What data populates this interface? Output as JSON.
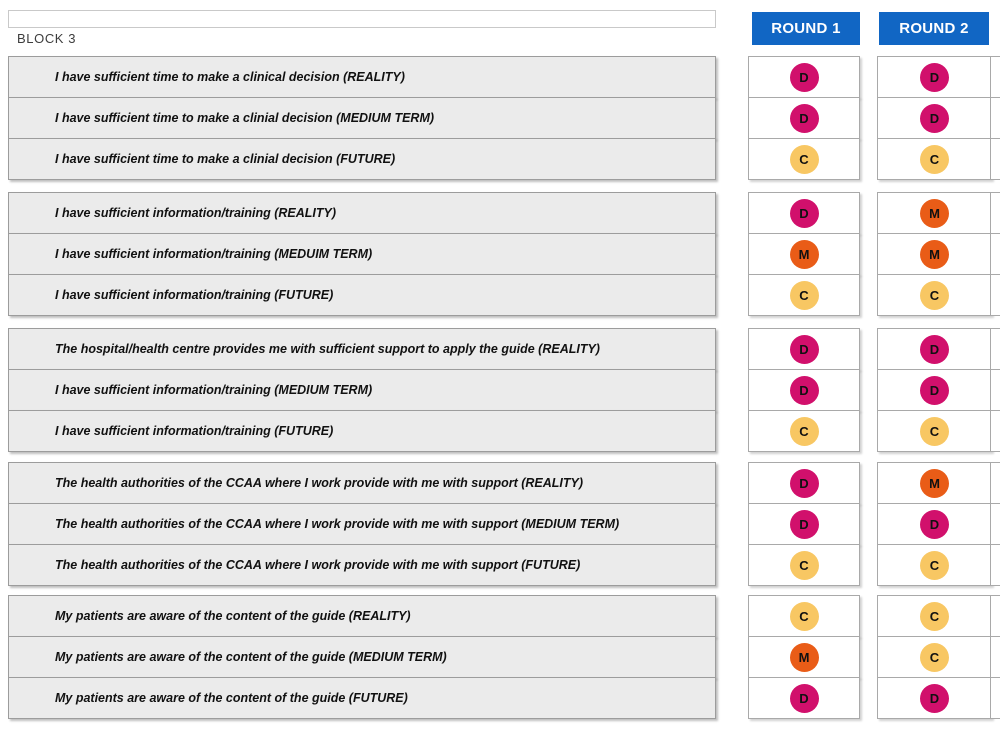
{
  "block_label": "BLOCK 3",
  "columns": [
    "ROUND 1",
    "ROUND 2"
  ],
  "code_colors": {
    "D": "#d1106c",
    "M": "#e95c17",
    "C": "#f8c763"
  },
  "header_color": "#1166c4",
  "chart_data": {
    "type": "table",
    "title": "BLOCK 3",
    "columns": [
      "ROUND 1",
      "ROUND 2"
    ],
    "code_colors": {
      "D": "#d1106c",
      "M": "#e95c17",
      "C": "#f8c763"
    },
    "rows": [
      {
        "item": "I have sufficient time to make a clinical decision (REALITY)",
        "round1": "D",
        "round2": "D"
      },
      {
        "item": "I have sufficient time to make a clinial decision (MEDIUM TERM)",
        "round1": "D",
        "round2": "D"
      },
      {
        "item": "I have sufficient time to make a clinial decision (FUTURE)",
        "round1": "C",
        "round2": "C"
      },
      {
        "item": "I have sufficient information/training (REALITY)",
        "round1": "D",
        "round2": "M"
      },
      {
        "item": "I have sufficient information/training (MEDUIM TERM)",
        "round1": "M",
        "round2": "M"
      },
      {
        "item": "I have sufficient information/training (FUTURE)",
        "round1": "C",
        "round2": "C"
      },
      {
        "item": "The hospital/health centre provides me with sufficient support to apply the guide (REALITY)",
        "round1": "D",
        "round2": "D"
      },
      {
        "item": "I have sufficient information/training (MEDIUM TERM)",
        "round1": "D",
        "round2": "D"
      },
      {
        "item": "I have sufficient information/training (FUTURE)",
        "round1": "C",
        "round2": "C"
      },
      {
        "item": "The health authorities of the CCAA where I work provide with me with support (REALITY)",
        "round1": "D",
        "round2": "M"
      },
      {
        "item": "The health authorities of the CCAA where I work provide with me with support (MEDIUM TERM)",
        "round1": "D",
        "round2": "D"
      },
      {
        "item": "The health authorities of the CCAA where I work provide with me with support (FUTURE)",
        "round1": "C",
        "round2": "C"
      },
      {
        "item": "My patients are aware of the content of the guide (REALITY)",
        "round1": "C",
        "round2": "C"
      },
      {
        "item": "My patients are aware of the content of the guide (MEDIUM TERM)",
        "round1": "M",
        "round2": "C"
      },
      {
        "item": "My patients are aware of the content of the guide (FUTURE)",
        "round1": "D",
        "round2": "D"
      }
    ]
  }
}
